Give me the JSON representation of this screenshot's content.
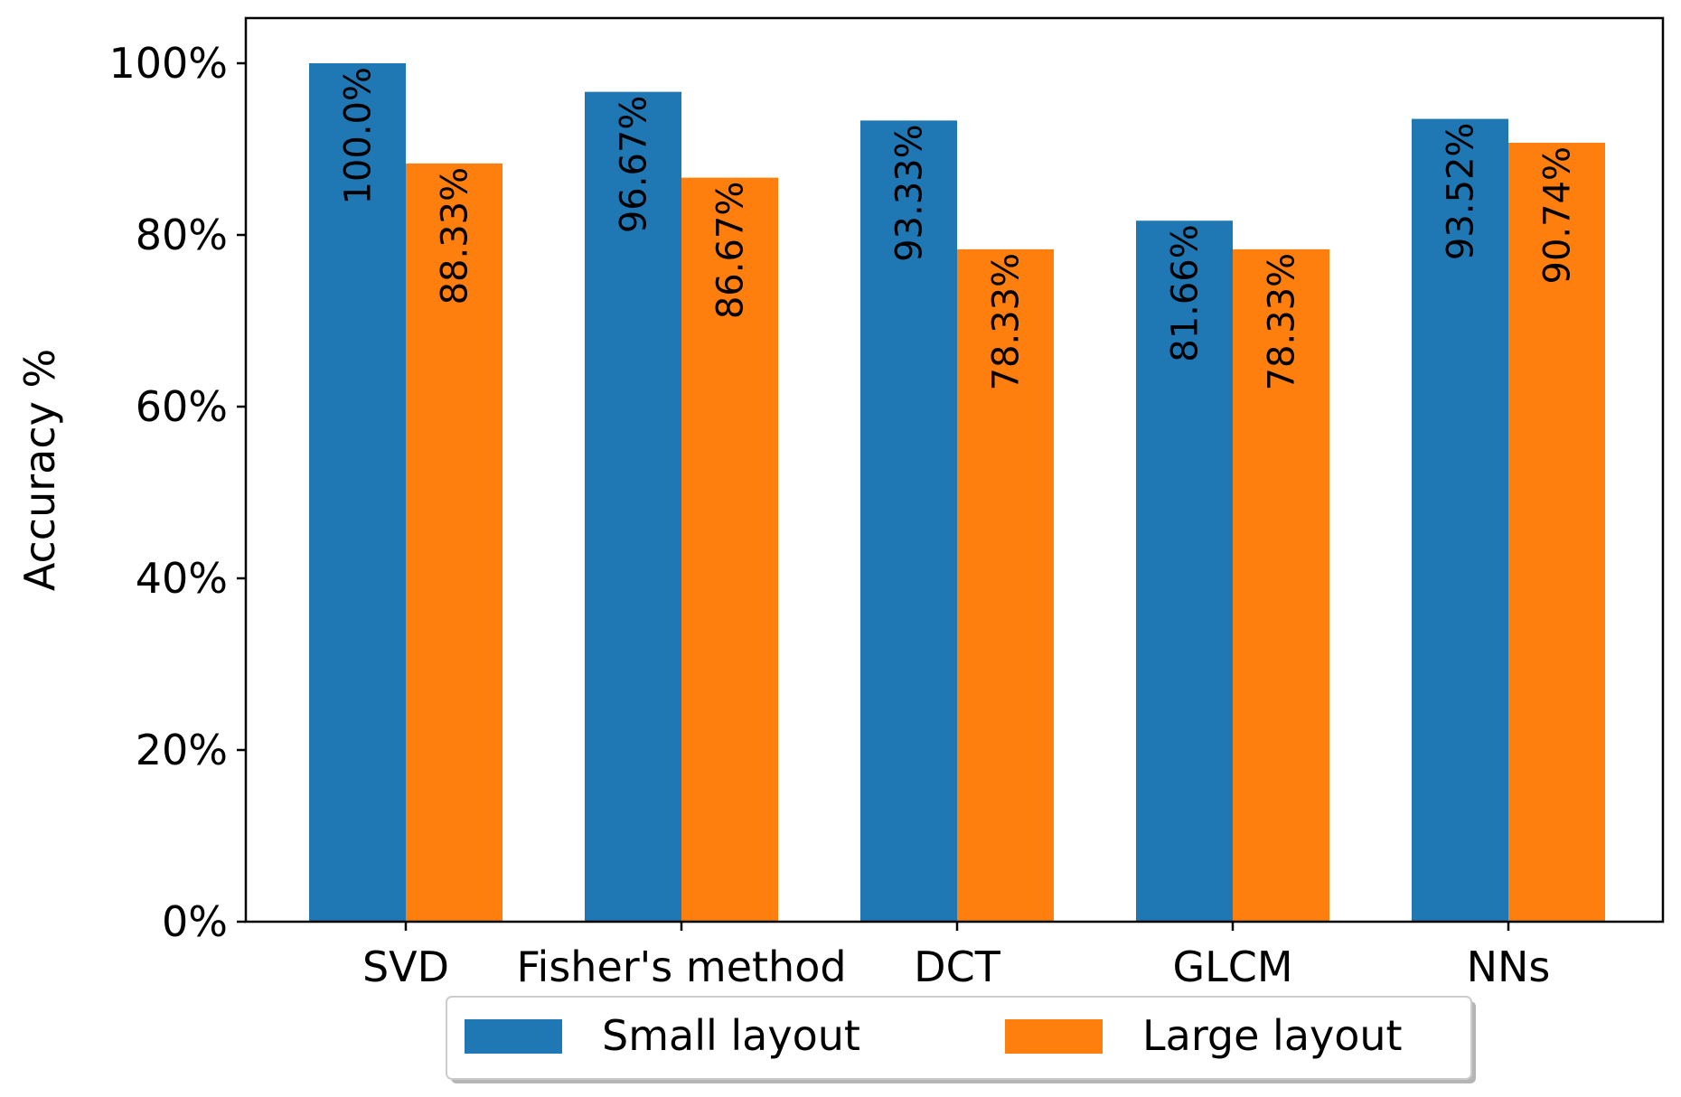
{
  "chart_data": {
    "type": "bar",
    "title": "",
    "xlabel": "",
    "ylabel": "Accuracy %",
    "ylim": [
      0,
      1
    ],
    "yticks": [
      0,
      0.2,
      0.4,
      0.6,
      0.8,
      1.0
    ],
    "ytick_labels": [
      "0%",
      "20%",
      "40%",
      "60%",
      "80%",
      "100%"
    ],
    "categories": [
      "SVD",
      "Fisher's method",
      "DCT",
      "GLCM",
      "NNs"
    ],
    "series": [
      {
        "name": "Small layout",
        "color": "#1f77b4",
        "values": [
          1.0,
          0.9667,
          0.9333,
          0.8166,
          0.9352
        ],
        "labels": [
          "100.0%",
          "96.67%",
          "93.33%",
          "81.66%",
          "93.52%"
        ]
      },
      {
        "name": "Large layout",
        "color": "#ff7f0e",
        "values": [
          0.8833,
          0.8667,
          0.7833,
          0.7833,
          0.9074
        ],
        "labels": [
          "88.33%",
          "86.67%",
          "78.33%",
          "78.33%",
          "90.74%"
        ]
      }
    ],
    "legend": {
      "position": "bottom-center",
      "entries": [
        "Small layout",
        "Large layout"
      ]
    },
    "grid": false
  }
}
